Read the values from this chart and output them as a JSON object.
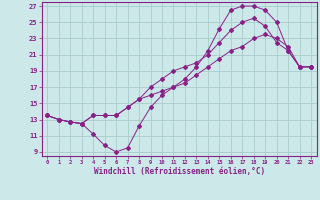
{
  "xlabel": "Windchill (Refroidissement éolien,°C)",
  "bg_color": "#cce8e8",
  "grid_color": "#aacccc",
  "line_color": "#882288",
  "xlim": [
    -0.5,
    23.5
  ],
  "ylim": [
    8.5,
    27.5
  ],
  "xticks": [
    0,
    1,
    2,
    3,
    4,
    5,
    6,
    7,
    8,
    9,
    10,
    11,
    12,
    13,
    14,
    15,
    16,
    17,
    18,
    19,
    20,
    21,
    22,
    23
  ],
  "yticks": [
    9,
    11,
    13,
    15,
    17,
    19,
    21,
    23,
    25,
    27
  ],
  "line1_x": [
    0,
    1,
    2,
    3,
    4,
    5,
    6,
    7,
    8,
    9,
    10,
    11,
    12,
    13,
    14,
    15,
    16,
    17,
    18,
    19,
    20,
    21,
    22,
    23
  ],
  "line1_y": [
    13.5,
    13.0,
    12.7,
    12.5,
    11.2,
    9.8,
    9.0,
    9.5,
    12.2,
    14.5,
    16.0,
    17.0,
    18.0,
    19.5,
    21.5,
    24.2,
    26.5,
    27.0,
    27.0,
    26.5,
    25.0,
    21.5,
    19.5,
    19.5
  ],
  "line2_x": [
    0,
    1,
    2,
    3,
    4,
    5,
    6,
    7,
    8,
    9,
    10,
    11,
    12,
    13,
    14,
    15,
    16,
    17,
    18,
    19,
    20,
    21,
    22,
    23
  ],
  "line2_y": [
    13.5,
    13.0,
    12.7,
    12.5,
    13.5,
    13.5,
    13.5,
    14.5,
    15.5,
    17.0,
    18.0,
    19.0,
    19.5,
    20.0,
    21.0,
    22.5,
    24.0,
    25.0,
    25.5,
    24.5,
    22.5,
    21.5,
    19.5,
    19.5
  ],
  "line3_x": [
    0,
    1,
    2,
    3,
    4,
    5,
    6,
    7,
    8,
    9,
    10,
    11,
    12,
    13,
    14,
    15,
    16,
    17,
    18,
    19,
    20,
    21,
    22,
    23
  ],
  "line3_y": [
    13.5,
    13.0,
    12.7,
    12.5,
    13.5,
    13.5,
    13.5,
    14.5,
    15.5,
    16.0,
    16.5,
    17.0,
    17.5,
    18.5,
    19.5,
    20.5,
    21.5,
    22.0,
    23.0,
    23.5,
    23.0,
    22.0,
    19.5,
    19.5
  ]
}
